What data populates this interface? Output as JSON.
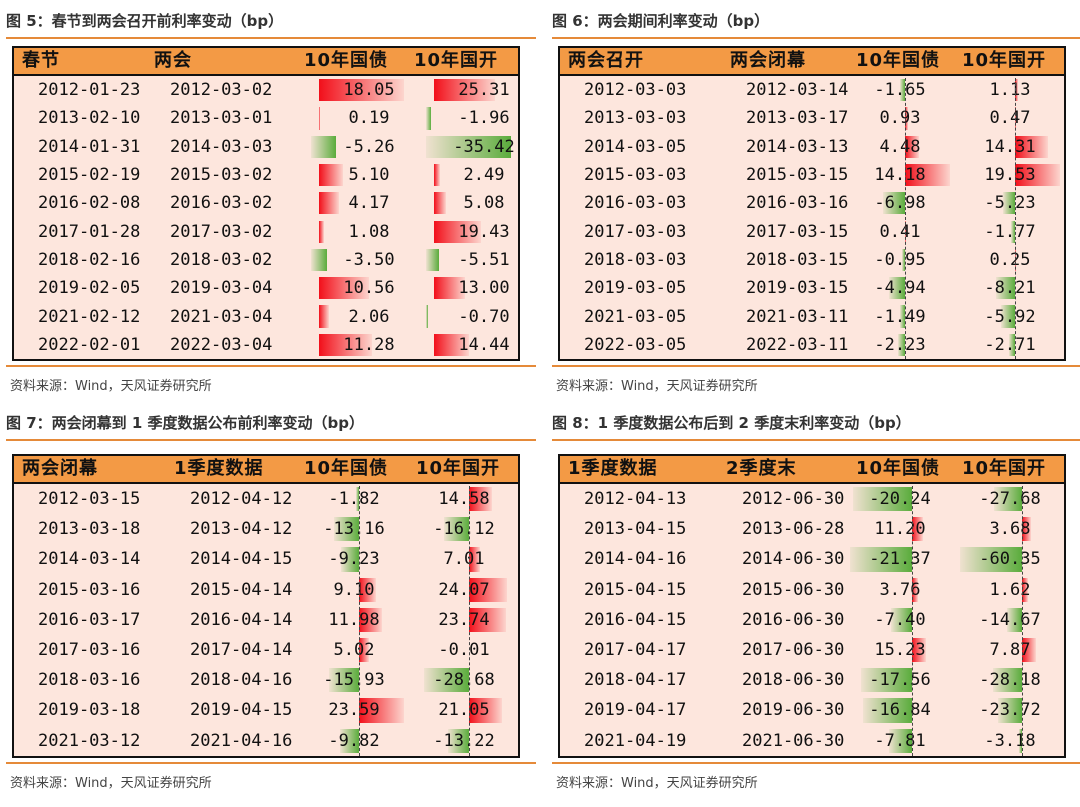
{
  "source_text": "资料来源：Wind，天风证券研究所",
  "colors": {
    "positive": "#f20f1a",
    "negative": "#5aac3c",
    "header": "#f39a45",
    "cell_bg": "#fde6dd",
    "rule": "#e58a39"
  },
  "chart_data": [
    {
      "type": "table",
      "title": "图 5：春节到两会召开前利率变动（bp）",
      "columns": [
        "春节",
        "两会",
        "10年国债",
        "10年国开"
      ],
      "rows": [
        [
          "2012-01-23",
          "2012-03-02",
          "18.05",
          "25.31"
        ],
        [
          "2013-02-10",
          "2013-03-01",
          "0.19",
          "-1.96"
        ],
        [
          "2014-01-31",
          "2014-03-03",
          "-5.26",
          "-35.42"
        ],
        [
          "2015-02-19",
          "2015-03-02",
          "5.10",
          "2.49"
        ],
        [
          "2016-02-08",
          "2016-03-02",
          "4.17",
          "5.08"
        ],
        [
          "2017-01-28",
          "2017-03-02",
          "1.08",
          "19.43"
        ],
        [
          "2018-02-16",
          "2018-03-02",
          "-3.50",
          "-5.51"
        ],
        [
          "2019-02-05",
          "2019-03-04",
          "10.56",
          "13.00"
        ],
        [
          "2021-02-12",
          "2021-03-04",
          "2.06",
          "-0.70"
        ],
        [
          "2022-02-01",
          "2022-03-04",
          "11.28",
          "14.44"
        ]
      ],
      "col_max": [
        18.05,
        35.42
      ],
      "bar_mode": "anchored"
    },
    {
      "type": "table",
      "title": "图 6：两会期间利率变动（bp）",
      "columns": [
        "两会召开",
        "两会闭幕",
        "10年国债",
        "10年国开"
      ],
      "rows": [
        [
          "2012-03-03",
          "2012-03-14",
          "-1.65",
          "1.13"
        ],
        [
          "2013-03-03",
          "2013-03-17",
          "0.93",
          "0.47"
        ],
        [
          "2014-03-05",
          "2014-03-13",
          "4.48",
          "14.31"
        ],
        [
          "2015-03-03",
          "2015-03-15",
          "14.18",
          "19.53"
        ],
        [
          "2016-03-03",
          "2016-03-16",
          "-6.98",
          "-5.23"
        ],
        [
          "2017-03-03",
          "2017-03-15",
          "0.41",
          "-1.77"
        ],
        [
          "2018-03-03",
          "2018-03-15",
          "-0.95",
          "0.25"
        ],
        [
          "2019-03-05",
          "2019-03-15",
          "-4.94",
          "-8.21"
        ],
        [
          "2021-03-05",
          "2021-03-11",
          "-1.49",
          "-5.92"
        ],
        [
          "2022-03-05",
          "2022-03-11",
          "-2.23",
          "-2.71"
        ]
      ],
      "col_max": [
        14.18,
        19.53
      ],
      "bar_mode": "axis"
    },
    {
      "type": "table",
      "title": "图 7：两会闭幕到 1 季度数据公布前利率变动（bp）",
      "columns": [
        "两会闭幕",
        "1季度数据",
        "10年国债",
        "10年国开"
      ],
      "rows": [
        [
          "2012-03-15",
          "2012-04-12",
          "-1.82",
          "14.58"
        ],
        [
          "2013-03-18",
          "2013-04-12",
          "-13.16",
          "-16.12"
        ],
        [
          "2014-03-14",
          "2014-04-15",
          "-9.23",
          "7.01"
        ],
        [
          "2015-03-16",
          "2015-04-14",
          "9.10",
          "24.07"
        ],
        [
          "2016-03-17",
          "2016-04-14",
          "11.98",
          "23.74"
        ],
        [
          "2017-03-16",
          "2017-04-14",
          "5.02",
          "-0.01"
        ],
        [
          "2018-03-16",
          "2018-04-16",
          "-15.93",
          "-28.68"
        ],
        [
          "2019-03-18",
          "2019-04-15",
          "23.59",
          "21.05"
        ],
        [
          "2021-03-12",
          "2021-04-16",
          "-9.82",
          "-13.22"
        ]
      ],
      "col_max": [
        23.59,
        28.68
      ],
      "bar_mode": "axis"
    },
    {
      "type": "table",
      "title": "图 8：1 季度数据公布后到 2 季度末利率变动（bp）",
      "columns": [
        "1季度数据",
        "2季度末",
        "10年国债",
        "10年国开"
      ],
      "rows": [
        [
          "2012-04-13",
          "2012-06-30",
          "-20.24",
          "-27.68"
        ],
        [
          "2013-04-15",
          "2013-06-28",
          "11.20",
          "3.68"
        ],
        [
          "2014-04-16",
          "2014-06-30",
          "-21.37",
          "-60.35"
        ],
        [
          "2015-04-15",
          "2015-06-30",
          "3.76",
          "1.62"
        ],
        [
          "2016-04-15",
          "2016-06-30",
          "-7.40",
          "-14.67"
        ],
        [
          "2017-04-17",
          "2017-06-30",
          "15.23",
          "7.87"
        ],
        [
          "2018-04-17",
          "2018-06-30",
          "-17.56",
          "-28.18"
        ],
        [
          "2019-04-17",
          "2019-06-30",
          "-16.84",
          "-23.72"
        ],
        [
          "2021-04-19",
          "2021-06-30",
          "-7.81",
          "-3.18"
        ]
      ],
      "col_max": [
        21.37,
        60.35
      ],
      "bar_mode": "axis_right"
    }
  ]
}
